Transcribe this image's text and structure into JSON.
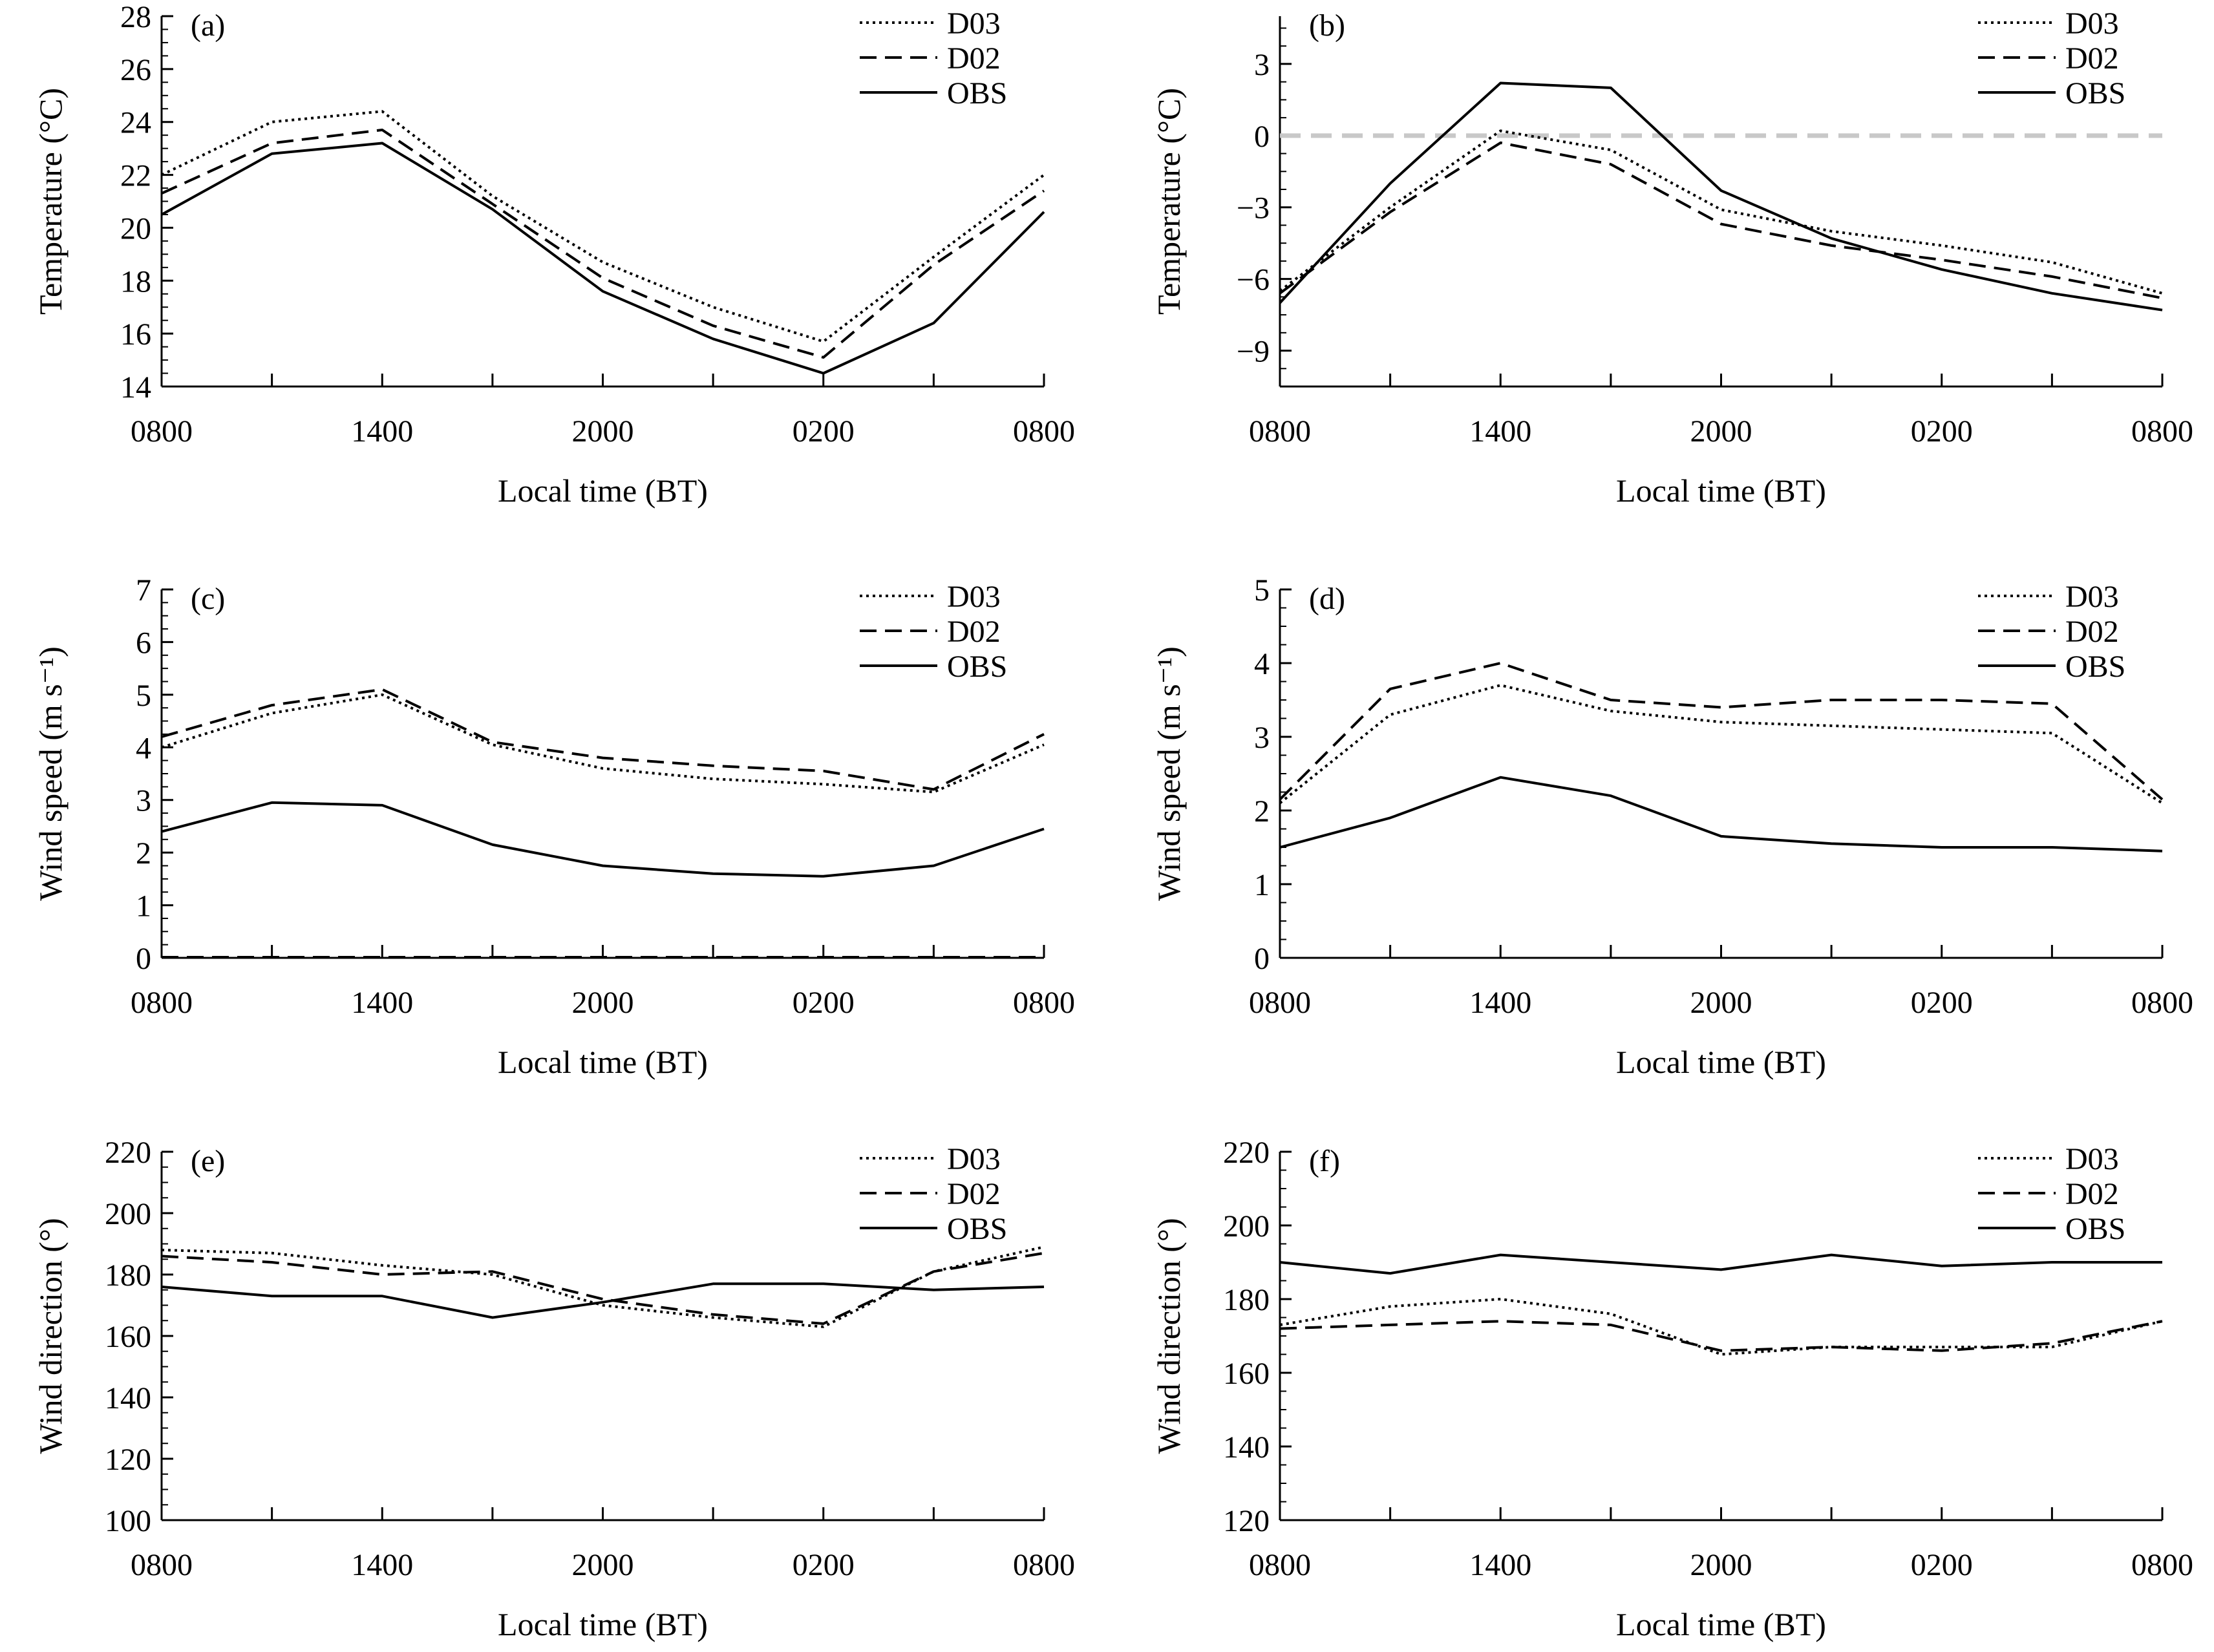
{
  "figure": {
    "panels": [
      "a",
      "b",
      "c",
      "d",
      "e",
      "f"
    ]
  },
  "style": {
    "line_color": "#000000",
    "zero_line_color": "#c8c8c8",
    "background": "#ffffff",
    "series_dash": {
      "D03": "dotted",
      "D02": "dashed",
      "OBS": "solid"
    }
  },
  "chart_data": [
    {
      "id": "a",
      "type": "line",
      "panel_label": "(a)",
      "xlabel": "Local time (BT)",
      "ylabel": "Temperature (°C)",
      "x_ticks": [
        "0800",
        "",
        "1400",
        "",
        "2000",
        "",
        "0200",
        "",
        "0800"
      ],
      "ylim": [
        14,
        28
      ],
      "y_ticks": [
        14,
        16,
        18,
        20,
        22,
        24,
        26,
        28
      ],
      "legend": [
        "D03",
        "D02",
        "OBS"
      ],
      "series": [
        {
          "name": "D03",
          "values": [
            22.0,
            24.0,
            24.4,
            21.2,
            18.7,
            17.0,
            15.7,
            18.9,
            22.0
          ]
        },
        {
          "name": "D02",
          "values": [
            21.3,
            23.2,
            23.7,
            20.9,
            18.1,
            16.3,
            15.1,
            18.6,
            21.4
          ]
        },
        {
          "name": "OBS",
          "values": [
            20.5,
            22.8,
            23.2,
            20.7,
            17.6,
            15.8,
            14.5,
            16.4,
            20.6
          ]
        }
      ]
    },
    {
      "id": "b",
      "type": "line",
      "panel_label": "(b)",
      "xlabel": "Local time (BT)",
      "ylabel": "Temperature (°C)",
      "x_ticks": [
        "0800",
        "",
        "1400",
        "",
        "2000",
        "",
        "0200",
        "",
        "0800"
      ],
      "ylim": [
        -10.5,
        5
      ],
      "y_ticks": [
        -9,
        -6,
        -3,
        0,
        3
      ],
      "zero_line": true,
      "legend": [
        "D03",
        "D02",
        "OBS"
      ],
      "series": [
        {
          "name": "D03",
          "values": [
            -6.5,
            -3.0,
            0.2,
            -0.6,
            -3.1,
            -4.0,
            -4.6,
            -5.3,
            -6.6
          ]
        },
        {
          "name": "D02",
          "values": [
            -6.6,
            -3.2,
            -0.3,
            -1.2,
            -3.7,
            -4.6,
            -5.2,
            -5.9,
            -6.8
          ]
        },
        {
          "name": "OBS",
          "values": [
            -7.0,
            -2.0,
            2.2,
            2.0,
            -2.3,
            -4.3,
            -5.6,
            -6.6,
            -7.3
          ]
        }
      ]
    },
    {
      "id": "c",
      "type": "line",
      "panel_label": "(c)",
      "xlabel": "Local time (BT)",
      "ylabel": "Wind speed (m s⁻¹)",
      "x_ticks": [
        "0800",
        "",
        "1400",
        "",
        "2000",
        "",
        "0200",
        "",
        "0800"
      ],
      "ylim": [
        0,
        7
      ],
      "y_ticks": [
        0,
        1,
        2,
        3,
        4,
        5,
        6,
        7
      ],
      "dashed_baseline": true,
      "legend": [
        "D03",
        "D02",
        "OBS"
      ],
      "series": [
        {
          "name": "D03",
          "values": [
            4.0,
            4.65,
            5.0,
            4.05,
            3.6,
            3.4,
            3.3,
            3.15,
            4.05
          ]
        },
        {
          "name": "D02",
          "values": [
            4.2,
            4.8,
            5.1,
            4.1,
            3.8,
            3.65,
            3.55,
            3.2,
            4.25
          ]
        },
        {
          "name": "OBS",
          "values": [
            2.4,
            2.95,
            2.9,
            2.15,
            1.75,
            1.6,
            1.55,
            1.75,
            2.45
          ]
        }
      ]
    },
    {
      "id": "d",
      "type": "line",
      "panel_label": "(d)",
      "xlabel": "Local time (BT)",
      "ylabel": "Wind speed (m s⁻¹)",
      "x_ticks": [
        "0800",
        "",
        "1400",
        "",
        "2000",
        "",
        "0200",
        "",
        "0800"
      ],
      "ylim": [
        0,
        5
      ],
      "y_ticks": [
        0,
        1,
        2,
        3,
        4,
        5
      ],
      "legend": [
        "D03",
        "D02",
        "OBS"
      ],
      "series": [
        {
          "name": "D03",
          "values": [
            2.1,
            3.3,
            3.7,
            3.35,
            3.2,
            3.15,
            3.1,
            3.05,
            2.1
          ]
        },
        {
          "name": "D02",
          "values": [
            2.15,
            3.65,
            4.0,
            3.5,
            3.4,
            3.5,
            3.5,
            3.45,
            2.15
          ]
        },
        {
          "name": "OBS",
          "values": [
            1.5,
            1.9,
            2.45,
            2.2,
            1.65,
            1.55,
            1.5,
            1.5,
            1.45
          ]
        }
      ]
    },
    {
      "id": "e",
      "type": "line",
      "panel_label": "(e)",
      "xlabel": "Local time (BT)",
      "ylabel": "Wind direction (°)",
      "x_ticks": [
        "0800",
        "",
        "1400",
        "",
        "2000",
        "",
        "0200",
        "",
        "0800"
      ],
      "ylim": [
        100,
        220
      ],
      "y_ticks": [
        100,
        120,
        140,
        160,
        180,
        200,
        220
      ],
      "legend": [
        "D03",
        "D02",
        "OBS"
      ],
      "series": [
        {
          "name": "D03",
          "values": [
            188,
            187,
            183,
            180,
            170,
            166,
            163,
            181,
            189
          ]
        },
        {
          "name": "D02",
          "values": [
            186,
            184,
            180,
            181,
            172,
            167,
            164,
            181,
            187
          ]
        },
        {
          "name": "OBS",
          "values": [
            176,
            173,
            173,
            166,
            171,
            177,
            177,
            175,
            176
          ]
        }
      ]
    },
    {
      "id": "f",
      "type": "line",
      "panel_label": "(f)",
      "xlabel": "Local time (BT)",
      "ylabel": "Wind direction (°)",
      "x_ticks": [
        "0800",
        "",
        "1400",
        "",
        "2000",
        "",
        "0200",
        "",
        "0800"
      ],
      "ylim": [
        120,
        220
      ],
      "y_ticks": [
        120,
        140,
        160,
        180,
        200,
        220
      ],
      "legend": [
        "D03",
        "D02",
        "OBS"
      ],
      "series": [
        {
          "name": "D03",
          "values": [
            173,
            178,
            180,
            176,
            165,
            167,
            167,
            167,
            174
          ]
        },
        {
          "name": "D02",
          "values": [
            172,
            173,
            174,
            173,
            166,
            167,
            166,
            168,
            174
          ]
        },
        {
          "name": "OBS",
          "values": [
            190,
            187,
            192,
            190,
            188,
            192,
            189,
            190,
            190
          ]
        }
      ]
    }
  ]
}
